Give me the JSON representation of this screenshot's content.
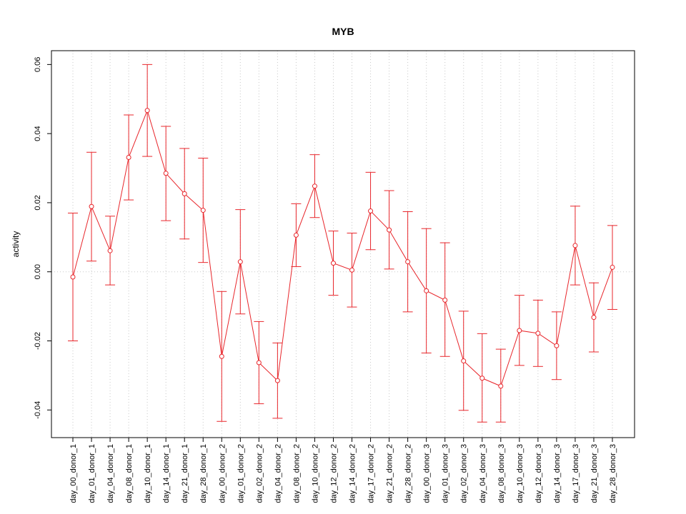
{
  "chart_data": {
    "type": "line",
    "title": "MYB",
    "xlabel": "",
    "ylabel": "activity",
    "ylim": [
      -0.048,
      0.064
    ],
    "yticks": [
      -0.04,
      -0.02,
      0.0,
      0.02,
      0.04,
      0.06
    ],
    "ytick_labels": [
      "-0.04",
      "-0.02",
      "0.00",
      "0.02",
      "0.04",
      "0.06"
    ],
    "grid": "vertical dotted",
    "color": "#e8262b",
    "categories": [
      "day_00_donor_1",
      "day_01_donor_1",
      "day_04_donor_1",
      "day_08_donor_1",
      "day_10_donor_1",
      "day_14_donor_1",
      "day_21_donor_1",
      "day_28_donor_1",
      "day_00_donor_2",
      "day_01_donor_2",
      "day_02_donor_2",
      "day_04_donor_2",
      "day_08_donor_2",
      "day_10_donor_2",
      "day_12_donor_2",
      "day_14_donor_2",
      "day_17_donor_2",
      "day_21_donor_2",
      "day_28_donor_2",
      "day_00_donor_3",
      "day_01_donor_3",
      "day_02_donor_3",
      "day_04_donor_3",
      "day_08_donor_3",
      "day_10_donor_3",
      "day_12_donor_3",
      "day_14_donor_3",
      "day_17_donor_3",
      "day_21_donor_3",
      "day_28_donor_3"
    ],
    "values": [
      -0.0015,
      0.0189,
      0.0061,
      0.0331,
      0.0467,
      0.0285,
      0.0226,
      0.0178,
      -0.0245,
      0.0029,
      -0.0263,
      -0.0315,
      0.0106,
      0.0248,
      0.0025,
      0.0005,
      0.0176,
      0.0121,
      0.0029,
      -0.0055,
      -0.0082,
      -0.0258,
      -0.0308,
      -0.0331,
      -0.017,
      -0.0178,
      -0.0214,
      0.0076,
      -0.0132,
      0.0013
    ],
    "upper": [
      0.017,
      0.0346,
      0.0161,
      0.0454,
      0.06,
      0.0421,
      0.0357,
      0.0329,
      -0.0057,
      0.018,
      -0.0144,
      -0.0206,
      0.0197,
      0.0339,
      0.0118,
      0.0112,
      0.0288,
      0.0235,
      0.0174,
      0.0125,
      0.0084,
      -0.0114,
      -0.0179,
      -0.0224,
      -0.0068,
      -0.0082,
      -0.0116,
      0.019,
      -0.0032,
      0.0134
    ],
    "lower": [
      -0.02,
      0.0031,
      -0.0038,
      0.0208,
      0.0334,
      0.0148,
      0.0095,
      0.0027,
      -0.0433,
      -0.0122,
      -0.0382,
      -0.0424,
      0.0015,
      0.0157,
      -0.0068,
      -0.0102,
      0.0064,
      0.0008,
      -0.0116,
      -0.0235,
      -0.0245,
      -0.0401,
      -0.0435,
      -0.0435,
      -0.0271,
      -0.0274,
      -0.0312,
      -0.0038,
      -0.0232,
      -0.0109
    ]
  }
}
